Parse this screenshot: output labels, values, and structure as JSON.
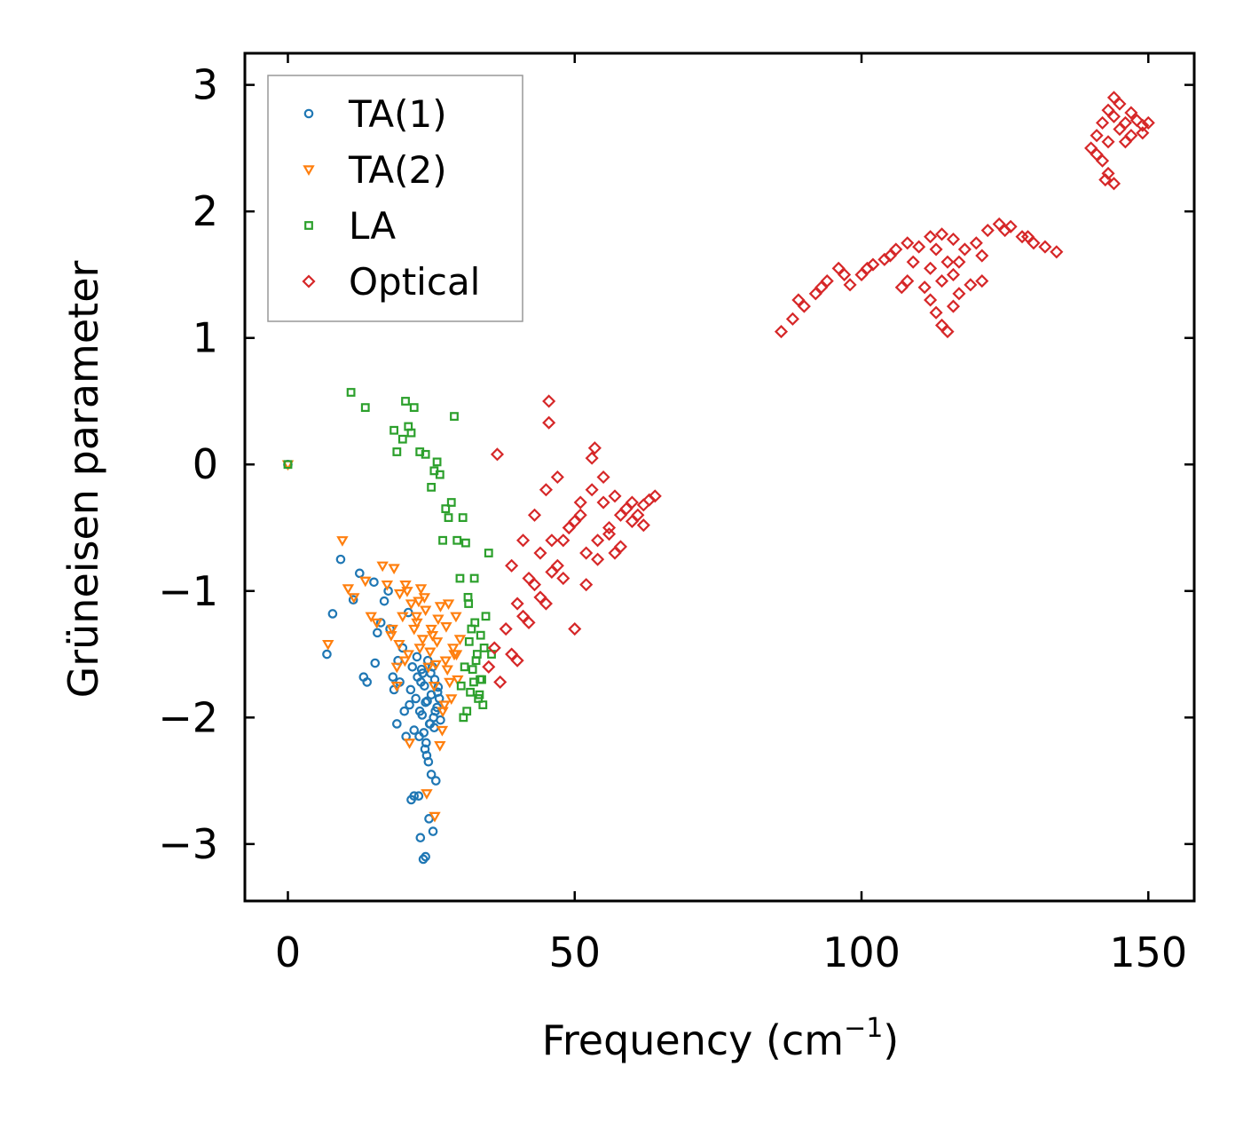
{
  "chart_data": {
    "type": "scatter",
    "title": "",
    "xlabel_main": "Frequency (cm",
    "xlabel_sup": "−1",
    "xlabel_close": ")",
    "ylabel": "Grüneisen parameter",
    "xlim": [
      -7.5,
      158
    ],
    "ylim": [
      -3.45,
      3.25
    ],
    "xticks": [
      0,
      50,
      100,
      150
    ],
    "xtick_labels": [
      "0",
      "50",
      "100",
      "150"
    ],
    "yticks": [
      -3,
      -2,
      -1,
      0,
      1,
      2,
      3
    ],
    "ytick_labels": [
      "−3",
      "−2",
      "−1",
      "0",
      "1",
      "2",
      "3"
    ],
    "legend_position": "upper-left",
    "series": [
      {
        "name": "TA(1)",
        "marker": "circle",
        "color": "#1f77b4",
        "x": [
          0.0,
          6.8,
          7.8,
          9.2,
          11.4,
          12.5,
          13.2,
          13.8,
          15.0,
          15.2,
          15.6,
          16.2,
          16.8,
          17.5,
          17.8,
          18.3,
          18.5,
          19.0,
          19.2,
          19.5,
          20.0,
          20.3,
          20.6,
          21.0,
          21.2,
          21.4,
          21.7,
          22.0,
          22.3,
          22.5,
          22.8,
          23.0,
          23.2,
          23.5,
          23.7,
          24.0,
          24.2,
          24.4,
          24.7,
          25.0,
          25.2,
          25.4,
          25.6,
          25.8,
          26.0,
          26.2,
          26.4,
          26.6,
          21.5,
          22.0,
          23.1,
          24.6,
          25.3,
          23.6,
          24.0,
          25.0,
          24.5,
          23.9,
          24.8,
          22.6,
          23.8,
          24.9,
          25.7,
          22.9,
          23.4,
          24.3,
          26.1,
          25.5,
          24.1,
          23.3
        ],
        "y": [
          0.0,
          -1.5,
          -1.18,
          -0.75,
          -1.07,
          -0.86,
          -1.68,
          -1.72,
          -0.93,
          -1.57,
          -1.33,
          -1.25,
          -1.08,
          -1.0,
          -1.3,
          -1.68,
          -1.78,
          -2.05,
          -1.55,
          -1.72,
          -1.45,
          -1.95,
          -2.15,
          -1.17,
          -1.9,
          -1.78,
          -1.6,
          -2.1,
          -1.85,
          -1.52,
          -2.62,
          -1.95,
          -1.72,
          -1.65,
          -2.12,
          -1.88,
          -2.3,
          -1.55,
          -2.05,
          -1.82,
          -1.6,
          -2.0,
          -1.7,
          -2.5,
          -1.92,
          -1.76,
          -1.85,
          -2.02,
          -2.65,
          -2.62,
          -2.95,
          -2.8,
          -2.9,
          -3.12,
          -3.1,
          -2.45,
          -2.35,
          -2.25,
          -2.05,
          -1.68,
          -1.75,
          -1.65,
          -1.95,
          -2.15,
          -1.98,
          -1.87,
          -1.8,
          -2.08,
          -2.2,
          -1.62
        ]
      },
      {
        "name": "TA(2)",
        "marker": "triangle_down",
        "color": "#ff7f0e",
        "x": [
          0.0,
          7.0,
          9.5,
          10.5,
          11.5,
          13.5,
          14.5,
          15.5,
          16.5,
          17.3,
          18.0,
          18.5,
          19.0,
          19.5,
          20.0,
          20.5,
          21.0,
          21.5,
          22.0,
          22.5,
          23.0,
          23.5,
          24.0,
          24.5,
          25.0,
          25.5,
          26.0,
          26.5,
          27.0,
          27.5,
          28.0,
          28.5,
          29.0,
          29.3,
          29.6,
          30.0,
          18.2,
          19.4,
          20.8,
          22.4,
          23.8,
          25.2,
          26.6,
          27.8,
          28.8,
          24.2,
          25.6,
          26.9,
          21.2,
          28.2,
          27.3,
          29.4,
          25.8,
          26.2,
          24.8,
          23.2,
          22.8,
          20.4,
          19.0,
          27.6
        ],
        "y": [
          0.0,
          -1.42,
          -0.6,
          -0.98,
          -1.05,
          -0.92,
          -1.2,
          -1.25,
          -0.8,
          -0.95,
          -1.35,
          -0.82,
          -1.6,
          -1.02,
          -1.2,
          -0.95,
          -1.5,
          -1.1,
          -1.3,
          -1.25,
          -1.45,
          -1.38,
          -1.15,
          -1.6,
          -1.3,
          -1.75,
          -1.4,
          -2.22,
          -1.95,
          -1.55,
          -1.1,
          -1.85,
          -1.5,
          -1.2,
          -1.7,
          -1.38,
          -1.3,
          -1.42,
          -1.0,
          -1.2,
          -1.05,
          -1.35,
          -1.12,
          -1.62,
          -1.45,
          -2.6,
          -2.78,
          -2.1,
          -2.2,
          -1.72,
          -1.9,
          -1.5,
          -1.58,
          -1.22,
          -1.48,
          -0.98,
          -1.08,
          -1.55,
          -1.75,
          -1.28
        ]
      },
      {
        "name": "LA",
        "marker": "square",
        "color": "#2ca02c",
        "x": [
          0.0,
          11.0,
          13.5,
          18.5,
          19.0,
          20.0,
          20.5,
          21.0,
          21.5,
          22.0,
          23.0,
          24.0,
          25.0,
          25.5,
          26.0,
          26.5,
          27.0,
          27.5,
          28.0,
          28.5,
          29.0,
          29.5,
          30.0,
          30.5,
          31.0,
          31.5,
          32.0,
          32.5,
          33.0,
          33.5,
          34.0,
          34.5,
          35.0,
          35.5,
          30.2,
          31.2,
          32.2,
          33.2,
          34.2,
          30.8,
          31.8,
          32.8,
          33.8,
          30.6,
          31.6,
          32.6,
          33.6,
          31.4,
          32.4,
          33.4
        ],
        "y": [
          0.0,
          0.57,
          0.45,
          0.27,
          0.1,
          0.2,
          0.5,
          0.3,
          0.25,
          0.45,
          0.1,
          0.08,
          -0.18,
          -0.05,
          0.02,
          -0.08,
          -0.6,
          -0.35,
          -0.42,
          -0.3,
          0.38,
          -0.6,
          -0.9,
          -0.42,
          -0.62,
          -1.1,
          -1.3,
          -0.9,
          -1.5,
          -1.7,
          -1.9,
          -1.2,
          -0.7,
          -1.5,
          -1.75,
          -1.95,
          -1.62,
          -1.85,
          -1.45,
          -1.6,
          -1.8,
          -1.55,
          -1.7,
          -2.0,
          -1.4,
          -1.25,
          -1.35,
          -1.05,
          -1.72,
          -1.82
        ]
      },
      {
        "name": "Optical",
        "marker": "diamond",
        "color": "#d62728",
        "x": [
          36.5,
          45.5,
          45.5,
          53.5,
          35,
          36,
          37,
          38,
          39,
          40,
          41,
          42,
          43,
          44,
          45,
          46,
          47,
          48,
          49,
          50,
          51,
          52,
          53,
          54,
          55,
          56,
          57,
          58,
          59,
          60,
          61,
          62,
          63,
          64,
          39,
          41,
          43,
          45,
          47,
          49,
          51,
          53,
          55,
          57,
          40,
          42,
          44,
          46,
          48,
          50,
          52,
          54,
          56,
          58,
          60,
          62,
          86,
          88,
          90,
          92,
          94,
          96,
          98,
          100,
          102,
          104,
          106,
          108,
          110,
          112,
          114,
          116,
          118,
          120,
          122,
          124,
          126,
          128,
          130,
          132,
          134,
          89,
          93,
          97,
          101,
          105,
          109,
          113,
          117,
          121,
          125,
          129,
          111,
          112,
          113,
          114,
          115,
          116,
          117,
          112,
          114,
          116,
          108,
          107,
          115,
          119,
          121,
          140,
          141,
          142,
          143,
          144,
          145,
          146,
          147,
          148,
          149,
          150,
          141,
          143,
          145,
          147,
          149,
          142,
          144,
          146,
          143,
          144,
          142.5
        ],
        "y": [
          0.08,
          0.5,
          0.33,
          0.13,
          -1.6,
          -1.45,
          -1.72,
          -1.3,
          -1.5,
          -1.55,
          -1.2,
          -1.25,
          -0.95,
          -1.05,
          -1.1,
          -0.6,
          -0.8,
          -0.9,
          -0.5,
          -1.3,
          -0.4,
          -0.7,
          -0.2,
          -0.6,
          -0.3,
          -0.5,
          -0.7,
          -0.4,
          -0.35,
          -0.45,
          -0.4,
          -0.32,
          -0.28,
          -0.25,
          -0.8,
          -0.6,
          -0.4,
          -0.2,
          -0.1,
          -0.5,
          -0.3,
          0.05,
          -0.1,
          -0.25,
          -1.1,
          -0.9,
          -0.7,
          -0.85,
          -0.6,
          -0.45,
          -0.95,
          -0.75,
          -0.55,
          -0.65,
          -0.3,
          -0.48,
          1.05,
          1.15,
          1.25,
          1.35,
          1.45,
          1.55,
          1.42,
          1.5,
          1.58,
          1.62,
          1.7,
          1.75,
          1.72,
          1.8,
          1.82,
          1.78,
          1.7,
          1.75,
          1.85,
          1.9,
          1.88,
          1.8,
          1.75,
          1.72,
          1.68,
          1.3,
          1.4,
          1.5,
          1.55,
          1.65,
          1.6,
          1.7,
          1.6,
          1.65,
          1.85,
          1.8,
          1.4,
          1.3,
          1.2,
          1.1,
          1.05,
          1.25,
          1.35,
          1.55,
          1.45,
          1.5,
          1.45,
          1.4,
          1.6,
          1.42,
          1.45,
          2.5,
          2.6,
          2.7,
          2.8,
          2.75,
          2.65,
          2.7,
          2.78,
          2.72,
          2.68,
          2.7,
          2.45,
          2.55,
          2.85,
          2.6,
          2.62,
          2.4,
          2.9,
          2.55,
          2.3,
          2.22,
          2.25
        ]
      }
    ]
  }
}
